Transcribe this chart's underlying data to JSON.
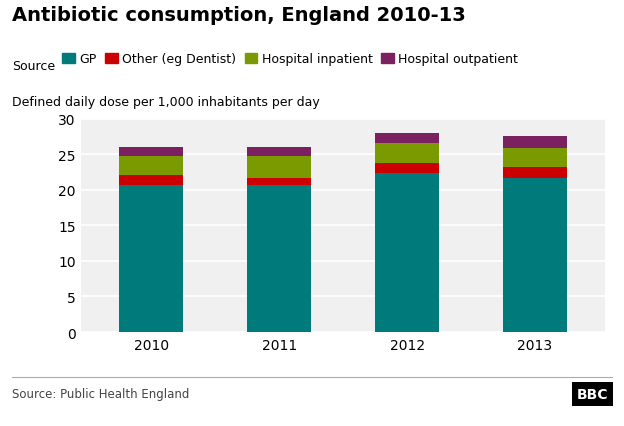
{
  "title": "Antibiotic consumption, England 2010-13",
  "ylabel": "Defined daily dose per 1,000 inhabitants per day",
  "source": "Source: Public Health England",
  "years": [
    "2010",
    "2011",
    "2012",
    "2013"
  ],
  "series": {
    "GP": [
      20.7,
      20.7,
      22.3,
      21.7
    ],
    "Other (eg Dentist)": [
      1.3,
      1.0,
      1.5,
      1.5
    ],
    "Hospital inpatient": [
      2.8,
      3.0,
      2.8,
      2.7
    ],
    "Hospital outpatient": [
      1.2,
      1.3,
      1.4,
      1.6
    ]
  },
  "colors": {
    "GP": "#007a7a",
    "Other (eg Dentist)": "#cc0000",
    "Hospital inpatient": "#7a9a00",
    "Hospital outpatient": "#7b2060"
  },
  "ylim": [
    0,
    30
  ],
  "yticks": [
    0,
    5,
    10,
    15,
    20,
    25,
    30
  ],
  "background_color": "#ffffff",
  "plot_bg_color": "#f0f0f0",
  "bar_width": 0.5,
  "title_fontsize": 14,
  "legend_fontsize": 9,
  "tick_fontsize": 10,
  "ylabel_fontsize": 9,
  "source_fontsize": 8.5,
  "series_order": [
    "GP",
    "Other (eg Dentist)",
    "Hospital inpatient",
    "Hospital outpatient"
  ]
}
